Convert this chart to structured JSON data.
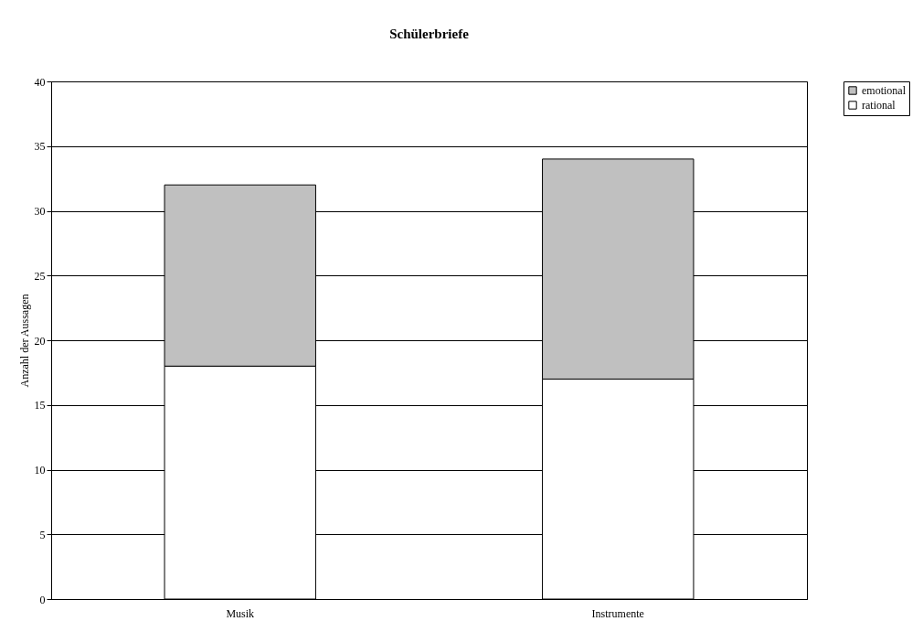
{
  "chart_data": {
    "type": "bar",
    "title": "Schülerbriefe",
    "ylabel": "Anzahl der Aussagen",
    "categories": [
      "Musik",
      "Instrumente"
    ],
    "series": [
      {
        "name": "rational",
        "color": "#ffffff",
        "values": [
          18,
          17
        ]
      },
      {
        "name": "emotional",
        "color": "#c0c0c0",
        "values": [
          14,
          17
        ]
      }
    ],
    "stacked": true,
    "ylim": [
      0,
      40
    ],
    "yticks": [
      0,
      5,
      10,
      15,
      20,
      25,
      30,
      35,
      40
    ],
    "grid": "y",
    "legend": "right"
  }
}
